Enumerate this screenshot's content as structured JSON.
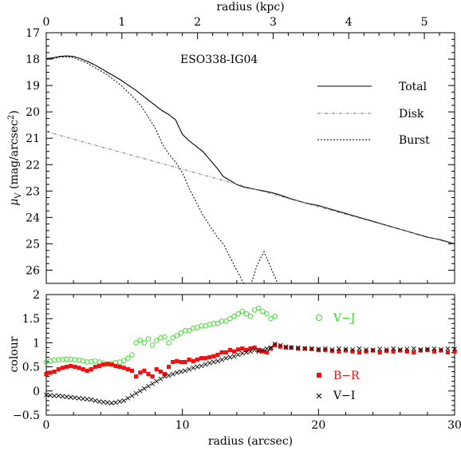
{
  "chart_data": [
    {
      "type": "line",
      "title": "ESO338-IG04",
      "xlabel_top": "radius (kpc)",
      "ylabel": "μ_V (mag/arcsec²)",
      "ylabel_main": "μ",
      "ylabel_sub": "V",
      "ylabel_unit": " (mag/arcsec",
      "ylabel_sup": "2",
      "ylabel_close": ")",
      "xlim": [
        0,
        30
      ],
      "ylim": [
        26.5,
        17
      ],
      "top_axis": {
        "xlim_kpc": [
          0,
          5.4
        ],
        "ticks": [
          0,
          1,
          2,
          3,
          4,
          5
        ],
        "tick_labels": [
          "0",
          "1",
          "2",
          "3",
          "4",
          "5"
        ]
      },
      "y_ticks": [
        17,
        18,
        19,
        20,
        21,
        22,
        23,
        24,
        25,
        26
      ],
      "y_tick_labels": [
        "17",
        "18",
        "19",
        "20",
        "21",
        "22",
        "23",
        "24",
        "25",
        "26"
      ],
      "legend_position": "right",
      "series": [
        {
          "name": "Total",
          "style": "solid",
          "x": [
            0,
            0.5,
            1,
            1.5,
            2,
            2.5,
            3,
            3.5,
            4,
            4.5,
            5,
            5.5,
            6,
            6.5,
            7,
            7.5,
            8,
            8.5,
            9,
            9.5,
            10,
            10.5,
            11,
            11.5,
            12,
            12.5,
            13,
            13.5,
            14,
            14.5,
            15,
            15.5,
            16,
            16.5,
            17,
            18,
            19,
            20,
            21,
            22,
            23,
            24,
            25,
            26,
            27,
            28,
            29,
            30
          ],
          "y": [
            17.98,
            17.95,
            17.9,
            17.88,
            17.9,
            17.98,
            18.08,
            18.2,
            18.35,
            18.5,
            18.65,
            18.8,
            18.98,
            19.15,
            19.35,
            19.55,
            19.75,
            19.95,
            20.1,
            20.3,
            20.85,
            21.1,
            21.3,
            21.5,
            21.8,
            22.1,
            22.45,
            22.6,
            22.75,
            22.85,
            22.9,
            22.95,
            23.0,
            23.05,
            23.12,
            23.3,
            23.45,
            23.55,
            23.7,
            23.85,
            24.0,
            24.15,
            24.3,
            24.45,
            24.6,
            24.75,
            24.85,
            25.0
          ]
        },
        {
          "name": "Disk",
          "style": "dash-dot",
          "x": [
            0,
            30
          ],
          "y": [
            20.75,
            25.02
          ]
        },
        {
          "name": "Burst",
          "style": "dotted",
          "x": [
            0,
            0.5,
            1,
            1.5,
            2,
            2.5,
            3,
            3.5,
            4,
            4.5,
            5,
            5.5,
            6,
            6.5,
            7,
            7.5,
            8,
            8.5,
            9,
            9.5,
            10,
            10.5,
            11,
            11.5,
            12,
            12.5,
            13,
            13.5,
            14,
            14.5,
            15,
            15.5,
            16,
            16.5,
            17
          ],
          "y": [
            18.0,
            17.98,
            17.92,
            17.92,
            17.95,
            18.05,
            18.15,
            18.3,
            18.45,
            18.6,
            18.8,
            19.0,
            19.25,
            19.5,
            19.8,
            20.2,
            20.6,
            21.2,
            21.6,
            21.9,
            22.3,
            22.9,
            23.4,
            23.9,
            24.3,
            24.7,
            25.0,
            25.5,
            26.0,
            26.5,
            26.6,
            25.8,
            25.3,
            25.9,
            26.5
          ]
        }
      ]
    },
    {
      "type": "scatter",
      "xlabel": "radius (arcsec)",
      "ylabel": "colour",
      "xlim": [
        0,
        30
      ],
      "ylim": [
        -0.5,
        2
      ],
      "x_ticks": [
        0,
        10,
        20,
        30
      ],
      "x_tick_labels": [
        "0",
        "10",
        "20",
        "30"
      ],
      "y_ticks": [
        -0.5,
        0,
        0.5,
        1,
        1.5,
        2
      ],
      "y_tick_labels": [
        "−0.5",
        "0",
        "0.5",
        "1",
        "1.5",
        "2"
      ],
      "legend_position": "right",
      "series": [
        {
          "name": "V−J",
          "marker": "open-circle",
          "color": "#33dd22",
          "x": [
            0,
            0.3,
            0.6,
            0.9,
            1.2,
            1.5,
            1.8,
            2.1,
            2.4,
            2.7,
            3.0,
            3.3,
            3.6,
            3.9,
            4.2,
            4.5,
            4.8,
            5.1,
            5.4,
            5.7,
            6.0,
            6.3,
            6.6,
            6.9,
            7.2,
            7.5,
            7.8,
            8.1,
            8.4,
            8.7,
            9.0,
            9.3,
            9.6,
            9.9,
            10.2,
            10.5,
            10.8,
            11.1,
            11.4,
            11.7,
            12.0,
            12.3,
            12.6,
            12.9,
            13.2,
            13.5,
            13.8,
            14.1,
            14.4,
            14.7,
            15.0,
            15.3,
            15.6,
            15.9,
            16.2,
            16.5,
            16.8
          ],
          "y": [
            0.6,
            0.62,
            0.64,
            0.65,
            0.65,
            0.66,
            0.66,
            0.65,
            0.64,
            0.62,
            0.6,
            0.61,
            0.62,
            0.6,
            0.58,
            0.56,
            0.57,
            0.59,
            0.6,
            0.63,
            0.68,
            0.75,
            1.0,
            1.05,
            1.0,
            1.08,
            0.95,
            1.05,
            1.1,
            1.12,
            1.0,
            1.1,
            1.15,
            1.2,
            1.25,
            1.25,
            1.3,
            1.32,
            1.35,
            1.35,
            1.38,
            1.4,
            1.4,
            1.45,
            1.45,
            1.5,
            1.55,
            1.6,
            1.65,
            1.6,
            1.55,
            1.68,
            1.72,
            1.65,
            1.6,
            1.5,
            1.55
          ]
        },
        {
          "name": "B−R",
          "marker": "filled-square",
          "color": "#ee1111",
          "x": [
            0,
            0.3,
            0.6,
            0.9,
            1.2,
            1.5,
            1.8,
            2.1,
            2.4,
            2.7,
            3.0,
            3.3,
            3.6,
            3.9,
            4.2,
            4.5,
            4.8,
            5.1,
            5.4,
            5.7,
            6.0,
            6.3,
            6.6,
            6.9,
            7.2,
            7.5,
            7.8,
            8.1,
            8.4,
            8.7,
            9.0,
            9.3,
            9.6,
            9.9,
            10.2,
            10.5,
            10.8,
            11.1,
            11.4,
            11.7,
            12.0,
            12.3,
            12.6,
            12.9,
            13.2,
            13.5,
            13.8,
            14.1,
            14.4,
            14.7,
            15.0,
            15.3,
            15.6,
            15.9,
            16.2,
            16.5,
            16.8,
            17.2,
            17.6,
            18.0,
            18.5,
            19.0,
            19.5,
            20.0,
            20.5,
            21.0,
            21.5,
            22.0,
            22.5,
            23.0,
            23.5,
            24.0,
            24.5,
            25.0,
            25.5,
            26.0,
            26.5,
            27.0,
            27.5,
            28.0,
            28.5,
            29.0,
            29.5,
            30.0
          ],
          "y": [
            0.35,
            0.38,
            0.4,
            0.45,
            0.48,
            0.5,
            0.52,
            0.5,
            0.48,
            0.45,
            0.42,
            0.45,
            0.5,
            0.52,
            0.55,
            0.56,
            0.55,
            0.52,
            0.5,
            0.48,
            0.45,
            0.42,
            0.3,
            0.38,
            0.42,
            0.35,
            0.3,
            0.45,
            0.4,
            0.35,
            0.5,
            0.6,
            0.62,
            0.6,
            0.6,
            0.65,
            0.62,
            0.65,
            0.68,
            0.68,
            0.7,
            0.72,
            0.75,
            0.8,
            0.8,
            0.85,
            0.82,
            0.86,
            0.88,
            0.85,
            0.88,
            0.9,
            0.85,
            0.82,
            0.8,
            0.88,
            0.95,
            0.92,
            0.9,
            0.9,
            0.88,
            0.88,
            0.87,
            0.85,
            0.85,
            0.83,
            0.82,
            0.84,
            0.82,
            0.8,
            0.82,
            0.84,
            0.8,
            0.83,
            0.82,
            0.84,
            0.82,
            0.8,
            0.84,
            0.85,
            0.82,
            0.84,
            0.8,
            0.82
          ]
        },
        {
          "name": "V−I",
          "marker": "cross",
          "color": "#000000",
          "x": [
            0,
            0.3,
            0.6,
            0.9,
            1.2,
            1.5,
            1.8,
            2.1,
            2.4,
            2.7,
            3.0,
            3.3,
            3.6,
            3.9,
            4.2,
            4.5,
            4.8,
            5.1,
            5.4,
            5.7,
            6.0,
            6.3,
            6.6,
            6.9,
            7.2,
            7.5,
            7.8,
            8.1,
            8.4,
            8.7,
            9.0,
            9.3,
            9.6,
            9.9,
            10.2,
            10.5,
            10.8,
            11.1,
            11.4,
            11.7,
            12.0,
            12.3,
            12.6,
            12.9,
            13.2,
            13.5,
            13.8,
            14.1,
            14.4,
            14.7,
            15.0,
            15.3,
            15.6,
            15.9,
            16.2,
            16.5,
            16.8,
            17.2,
            17.6,
            18.0,
            18.5,
            19.0,
            19.5,
            20.0,
            20.5,
            21.0,
            21.5,
            22.0,
            22.5,
            23.0,
            23.5,
            24.0,
            24.5,
            25.0,
            25.5,
            26.0,
            26.5,
            27.0,
            27.5,
            28.0,
            28.5,
            29.0,
            29.5,
            30.0
          ],
          "y": [
            -0.08,
            -0.09,
            -0.1,
            -0.1,
            -0.11,
            -0.12,
            -0.13,
            -0.14,
            -0.15,
            -0.16,
            -0.17,
            -0.18,
            -0.2,
            -0.22,
            -0.23,
            -0.24,
            -0.25,
            -0.24,
            -0.22,
            -0.2,
            -0.15,
            -0.1,
            -0.05,
            0.0,
            0.05,
            0.1,
            0.15,
            0.2,
            0.25,
            0.3,
            0.32,
            0.35,
            0.38,
            0.4,
            0.42,
            0.45,
            0.48,
            0.5,
            0.52,
            0.55,
            0.58,
            0.6,
            0.62,
            0.65,
            0.68,
            0.7,
            0.72,
            0.75,
            0.78,
            0.8,
            0.82,
            0.85,
            0.82,
            0.85,
            0.88,
            0.9,
            0.98,
            0.95,
            0.92,
            0.9,
            0.9,
            0.88,
            0.88,
            0.87,
            0.88,
            0.86,
            0.88,
            0.87,
            0.86,
            0.88,
            0.86,
            0.85,
            0.87,
            0.86,
            0.88,
            0.86,
            0.87,
            0.88,
            0.86,
            0.87,
            0.88,
            0.86,
            0.88,
            0.87
          ]
        }
      ]
    }
  ]
}
